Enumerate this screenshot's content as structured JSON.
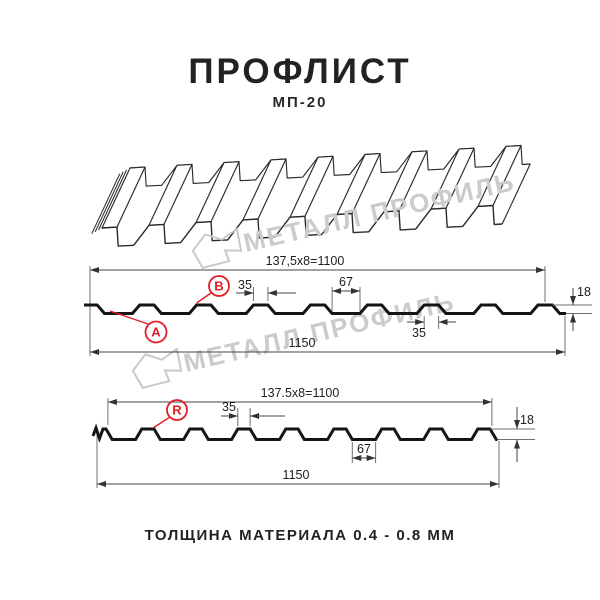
{
  "title": "ПРОФЛИСТ",
  "subtitle": "МП-20",
  "footer": "ТОЛЩИНА МАТЕРИАЛА 0.4 - 0.8 ММ",
  "watermark": {
    "text": "МЕТАЛЛ ПРОФИЛЬ",
    "color": "#cbcbcb"
  },
  "colors": {
    "accent_red": "#e31e24",
    "line_dark": "#141414"
  },
  "section_a": {
    "top_dim": "137,5x8=1100",
    "rib_top_width": "35",
    "valley_width": "67",
    "height": "18",
    "bottom_rib_width": "35",
    "total_width": "1150",
    "label_a": "A",
    "label_b": "B"
  },
  "section_r": {
    "top_dim": "137.5x8=1100",
    "rib_top_width": "35",
    "valley_width": "67",
    "height": "18",
    "total_width": "1150",
    "label_r": "R"
  }
}
